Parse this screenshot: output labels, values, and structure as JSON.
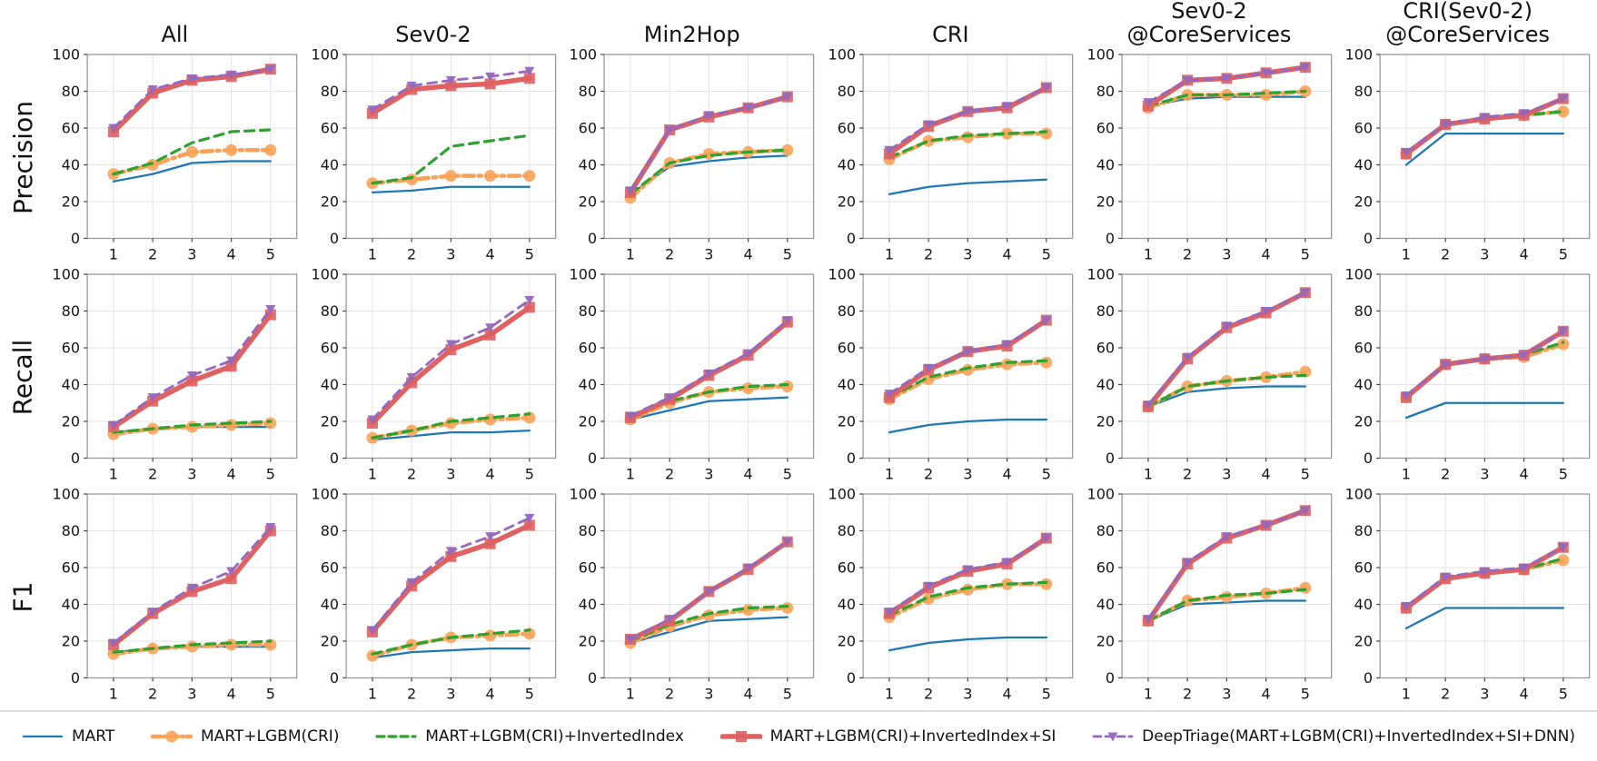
{
  "chart_data": {
    "type": "line",
    "grid": "3 rows x 6 cols",
    "x": [
      1,
      2,
      3,
      4,
      5
    ],
    "ylim": [
      0,
      100
    ],
    "yticks": [
      0,
      20,
      40,
      60,
      80,
      100
    ],
    "rows": [
      "Precision",
      "Recall",
      "F1"
    ],
    "columns": [
      "All",
      "Sev0-2",
      "Min2Hop",
      "CRI",
      "Sev0-2\n@CoreServices",
      "CRI(Sev0-2)\n@CoreServices"
    ],
    "legend_position": "bottom",
    "grid_lines": true,
    "series_meta": [
      {
        "name": "MART",
        "color": "#1f77b4",
        "dash": "solid",
        "marker": "none",
        "width": 2.3
      },
      {
        "name": "MART+LGBM(CRI)",
        "color": "#f9a257",
        "dash": "dashdot",
        "marker": "circle",
        "width": 4.5
      },
      {
        "name": "MART+LGBM(CRI)+InvertedIndex",
        "color": "#2ea12e",
        "dash": "dashed",
        "marker": "none",
        "width": 3.2
      },
      {
        "name": "MART+LGBM(CRI)+InvertedIndex+SI",
        "color": "#e06161",
        "dash": "solid",
        "marker": "square",
        "width": 5.5
      },
      {
        "name": "DeepTriage(MART+LGBM(CRI)+InvertedIndex+SI+DNN)",
        "color": "#9468bd",
        "dash": "dashed",
        "marker": "triangle-down",
        "width": 2.8
      }
    ],
    "panels": [
      {
        "row": "Precision",
        "col": "All",
        "series": [
          [
            31,
            35,
            41,
            42,
            42
          ],
          [
            35,
            40,
            47,
            48,
            48
          ],
          [
            35,
            41,
            52,
            58,
            59
          ],
          [
            58,
            79,
            86,
            88,
            92
          ],
          [
            60,
            81,
            87,
            89,
            92
          ]
        ]
      },
      {
        "row": "Precision",
        "col": "Sev0-2",
        "series": [
          [
            25,
            26,
            28,
            28,
            28
          ],
          [
            30,
            32,
            34,
            34,
            34
          ],
          [
            30,
            33,
            50,
            53,
            56
          ],
          [
            68,
            81,
            83,
            84,
            87
          ],
          [
            70,
            83,
            86,
            88,
            91
          ]
        ]
      },
      {
        "row": "Precision",
        "col": "Min2Hop",
        "series": [
          [
            24,
            39,
            42,
            44,
            45
          ],
          [
            22,
            41,
            46,
            47,
            48
          ],
          [
            24,
            41,
            45,
            47,
            48
          ],
          [
            25,
            59,
            66,
            71,
            77
          ],
          [
            26,
            59,
            67,
            71,
            77
          ]
        ]
      },
      {
        "row": "Precision",
        "col": "CRI",
        "series": [
          [
            24,
            28,
            30,
            31,
            32
          ],
          [
            43,
            53,
            55,
            57,
            57
          ],
          [
            44,
            53,
            56,
            57,
            58
          ],
          [
            46,
            61,
            69,
            71,
            82
          ],
          [
            48,
            62,
            69,
            72,
            82
          ]
        ]
      },
      {
        "row": "Precision",
        "col": "Sev0-2 @CoreServices",
        "series": [
          [
            72,
            76,
            77,
            77,
            77
          ],
          [
            71,
            78,
            78,
            78,
            80
          ],
          [
            72,
            78,
            78,
            79,
            80
          ],
          [
            72,
            86,
            87,
            90,
            93
          ],
          [
            74,
            86,
            87,
            90,
            93
          ]
        ]
      },
      {
        "row": "Precision",
        "col": "CRI(Sev0-2) @CoreServices",
        "series": [
          [
            40,
            57,
            57,
            57,
            57
          ],
          [
            46,
            62,
            65,
            67,
            69
          ],
          [
            46,
            62,
            65,
            67,
            69
          ],
          [
            46,
            62,
            65,
            67,
            76
          ],
          [
            47,
            62,
            66,
            68,
            76
          ]
        ]
      },
      {
        "row": "Recall",
        "col": "All",
        "series": [
          [
            14,
            16,
            17,
            17,
            17
          ],
          [
            13,
            16,
            17,
            18,
            19
          ],
          [
            14,
            16,
            18,
            19,
            20
          ],
          [
            17,
            31,
            42,
            50,
            78
          ],
          [
            18,
            33,
            45,
            53,
            81
          ]
        ]
      },
      {
        "row": "Recall",
        "col": "Sev0-2",
        "series": [
          [
            10,
            12,
            14,
            14,
            15
          ],
          [
            11,
            15,
            19,
            21,
            22
          ],
          [
            11,
            15,
            20,
            22,
            24
          ],
          [
            19,
            41,
            59,
            67,
            82
          ],
          [
            21,
            44,
            62,
            71,
            86
          ]
        ]
      },
      {
        "row": "Recall",
        "col": "Min2Hop",
        "series": [
          [
            21,
            26,
            31,
            32,
            33
          ],
          [
            21,
            30,
            36,
            38,
            39
          ],
          [
            22,
            31,
            36,
            39,
            40
          ],
          [
            22,
            32,
            45,
            56,
            74
          ],
          [
            23,
            33,
            46,
            57,
            75
          ]
        ]
      },
      {
        "row": "Recall",
        "col": "CRI",
        "series": [
          [
            14,
            18,
            20,
            21,
            21
          ],
          [
            32,
            43,
            48,
            51,
            52
          ],
          [
            33,
            44,
            49,
            52,
            53
          ],
          [
            33,
            48,
            58,
            61,
            75
          ],
          [
            35,
            49,
            58,
            62,
            75
          ]
        ]
      },
      {
        "row": "Recall",
        "col": "Sev0-2 @CoreServices",
        "series": [
          [
            28,
            36,
            38,
            39,
            39
          ],
          [
            28,
            39,
            42,
            44,
            47
          ],
          [
            28,
            39,
            42,
            44,
            45
          ],
          [
            28,
            54,
            71,
            79,
            90
          ],
          [
            29,
            55,
            72,
            80,
            90
          ]
        ]
      },
      {
        "row": "Recall",
        "col": "CRI(Sev0-2) @CoreServices",
        "series": [
          [
            22,
            30,
            30,
            30,
            30
          ],
          [
            33,
            51,
            54,
            55,
            62
          ],
          [
            34,
            51,
            54,
            56,
            63
          ],
          [
            33,
            51,
            54,
            56,
            69
          ],
          [
            34,
            51,
            54,
            56,
            69
          ]
        ]
      },
      {
        "row": "F1",
        "col": "All",
        "series": [
          [
            14,
            16,
            17,
            17,
            17
          ],
          [
            13,
            16,
            17,
            18,
            18
          ],
          [
            14,
            16,
            18,
            19,
            20
          ],
          [
            18,
            35,
            47,
            54,
            80
          ],
          [
            19,
            36,
            49,
            58,
            82
          ]
        ]
      },
      {
        "row": "F1",
        "col": "Sev0-2",
        "series": [
          [
            11,
            14,
            15,
            16,
            16
          ],
          [
            12,
            18,
            22,
            23,
            24
          ],
          [
            13,
            18,
            22,
            24,
            26
          ],
          [
            25,
            50,
            66,
            73,
            83
          ],
          [
            26,
            52,
            69,
            77,
            87
          ]
        ]
      },
      {
        "row": "F1",
        "col": "Min2Hop",
        "series": [
          [
            19,
            25,
            31,
            32,
            33
          ],
          [
            19,
            28,
            34,
            37,
            38
          ],
          [
            20,
            29,
            35,
            38,
            39
          ],
          [
            21,
            31,
            47,
            59,
            74
          ],
          [
            21,
            32,
            47,
            60,
            74
          ]
        ]
      },
      {
        "row": "F1",
        "col": "CRI",
        "series": [
          [
            15,
            19,
            21,
            22,
            22
          ],
          [
            33,
            43,
            48,
            51,
            51
          ],
          [
            34,
            44,
            49,
            51,
            52
          ],
          [
            35,
            49,
            58,
            62,
            76
          ],
          [
            36,
            50,
            59,
            63,
            76
          ]
        ]
      },
      {
        "row": "F1",
        "col": "Sev0-2 @CoreServices",
        "series": [
          [
            31,
            40,
            41,
            42,
            42
          ],
          [
            31,
            42,
            44,
            46,
            49
          ],
          [
            31,
            42,
            45,
            46,
            48
          ],
          [
            31,
            62,
            76,
            83,
            91
          ],
          [
            32,
            63,
            77,
            83,
            91
          ]
        ]
      },
      {
        "row": "F1",
        "col": "CRI(Sev0-2) @CoreServices",
        "series": [
          [
            27,
            38,
            38,
            38,
            38
          ],
          [
            38,
            54,
            57,
            59,
            64
          ],
          [
            38,
            54,
            57,
            59,
            65
          ],
          [
            38,
            54,
            57,
            59,
            71
          ],
          [
            39,
            55,
            58,
            60,
            71
          ]
        ]
      }
    ]
  }
}
